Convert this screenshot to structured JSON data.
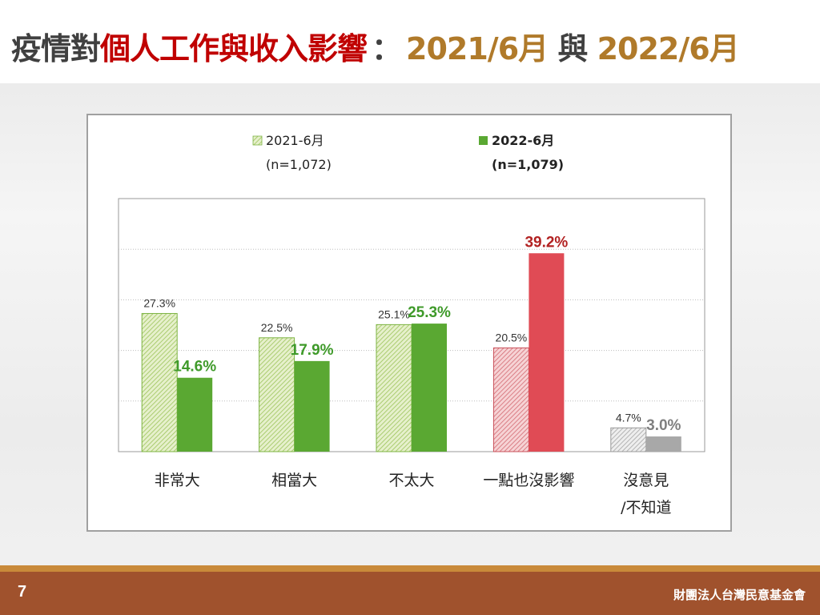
{
  "slide": {
    "title_part1": "疫情對",
    "title_part2": "個人工作與收入影響",
    "title_colon": "：",
    "title_part3": "2021/6月",
    "title_part4": " 與 ",
    "title_part5": "2022/6月",
    "page_number": "7",
    "organization": "財團法人台灣民意基金會"
  },
  "colors": {
    "title_dark": "#404040",
    "title_red": "#c00000",
    "title_brown": "#b07a2a",
    "green_2022": "#5aa832",
    "green_2021_hatch": "#c4dd96",
    "red_2022": "#e04b55",
    "red_2021_hatch": "#e8a0a4",
    "gray_2022": "#a8a8a8",
    "gray_2021_hatch": "#cfcfcf",
    "label_green": "#3f9a2a",
    "label_red": "#b22222",
    "label_gray": "#7f7f7f",
    "footer": "#a0522d",
    "footer_line": "#c98a3a"
  },
  "chart_data": {
    "type": "bar",
    "categories": [
      "非常大",
      "相當大",
      "不太大",
      "一點也沒影響",
      "沒意見\n/不知道"
    ],
    "series": [
      {
        "name": "2021-6月",
        "sample": "(n=1,072)",
        "values": [
          27.3,
          22.5,
          25.1,
          20.5,
          4.7
        ],
        "labels": [
          "27.3%",
          "22.5%",
          "25.1%",
          "20.5%",
          "4.7%"
        ],
        "fill_colors": [
          "#c4dd96",
          "#c4dd96",
          "#c4dd96",
          "#e8a0a4",
          "#cfcfcf"
        ]
      },
      {
        "name": "2022-6月",
        "sample": "(n=1,079)",
        "values": [
          14.6,
          17.9,
          25.3,
          39.2,
          3.0
        ],
        "labels": [
          "14.6%",
          "17.9%",
          "25.3%",
          "39.2%",
          "3.0%"
        ],
        "fill_colors": [
          "#5aa832",
          "#5aa832",
          "#5aa832",
          "#e04b55",
          "#a8a8a8"
        ],
        "label_colors": [
          "#3f9a2a",
          "#3f9a2a",
          "#3f9a2a",
          "#b22222",
          "#7f7f7f"
        ]
      }
    ],
    "ylim": [
      0,
      50
    ],
    "grid": true,
    "legend": "top"
  }
}
